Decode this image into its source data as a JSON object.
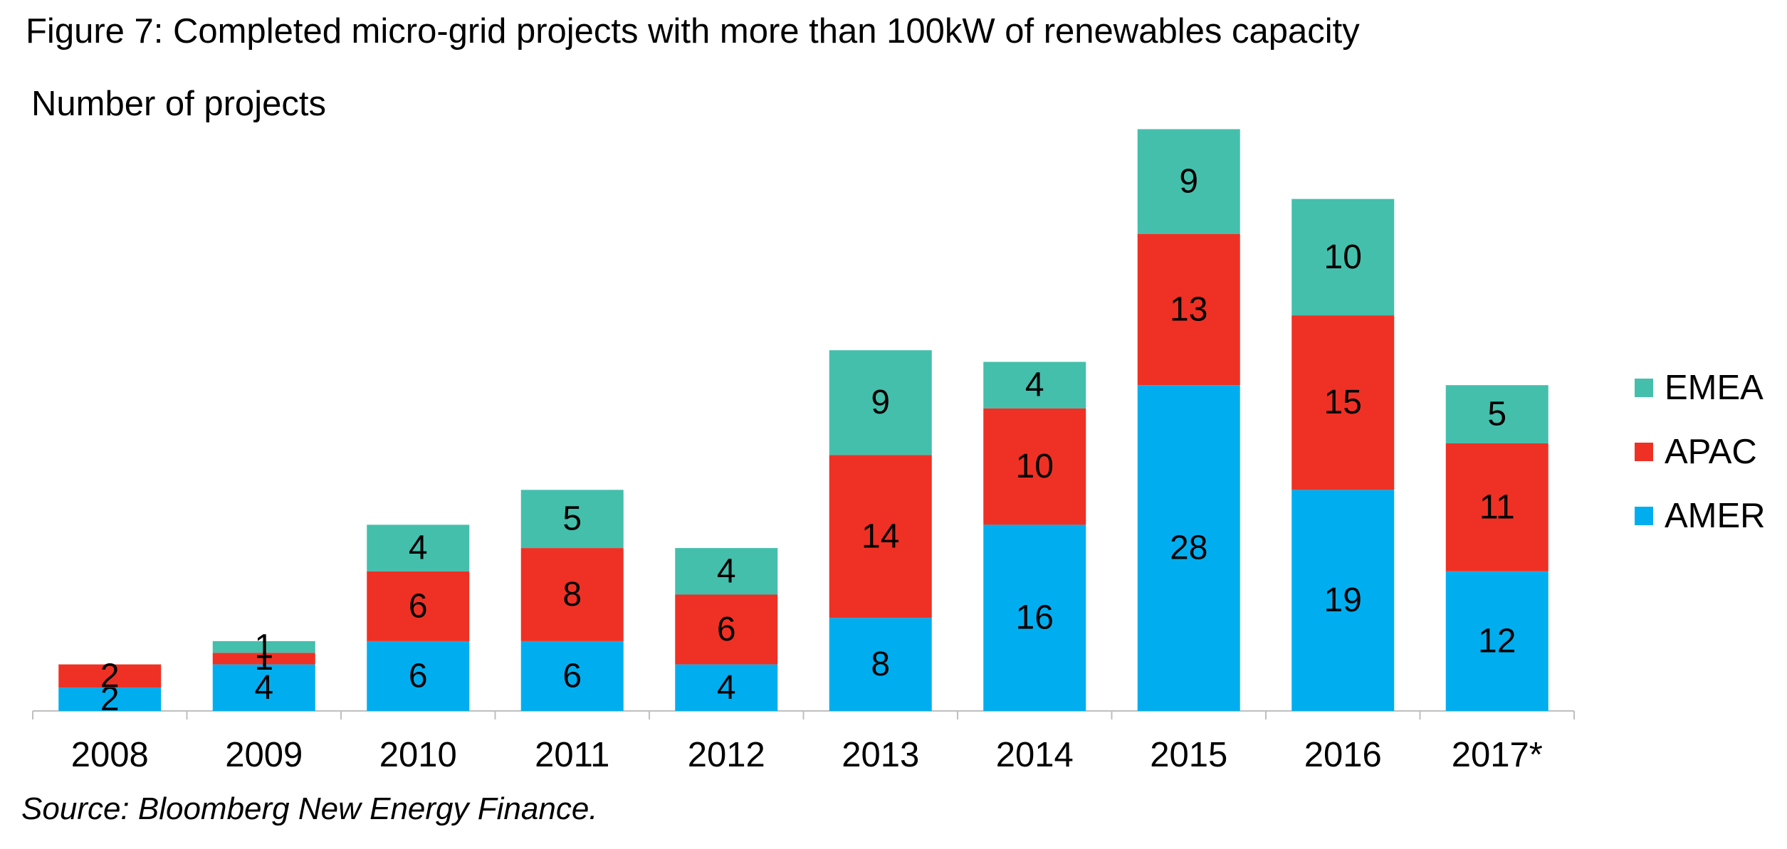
{
  "title": "Figure 7: Completed micro-grid projects with more than 100kW of renewables capacity",
  "source": "Source: Bloomberg New Energy Finance.",
  "chart_data": {
    "type": "bar",
    "stacked": true,
    "ylabel": "Number of projects",
    "xlabel": "",
    "categories": [
      "2008",
      "2009",
      "2010",
      "2011",
      "2012",
      "2013",
      "2014",
      "2015",
      "2016",
      "2017*"
    ],
    "series": [
      {
        "name": "AMER",
        "color": "#00AEEF",
        "values": [
          2,
          4,
          6,
          6,
          4,
          8,
          16,
          28,
          19,
          12
        ]
      },
      {
        "name": "APAC",
        "color": "#EE3124",
        "values": [
          2,
          1,
          6,
          8,
          6,
          14,
          10,
          13,
          15,
          11
        ]
      },
      {
        "name": "EMEA",
        "color": "#44BFAC",
        "values": [
          0,
          1,
          4,
          5,
          4,
          9,
          4,
          9,
          10,
          5
        ]
      }
    ],
    "legend_position": "right",
    "legend_order": [
      "EMEA",
      "APAC",
      "AMER"
    ],
    "grid": false,
    "data_labels": true
  }
}
